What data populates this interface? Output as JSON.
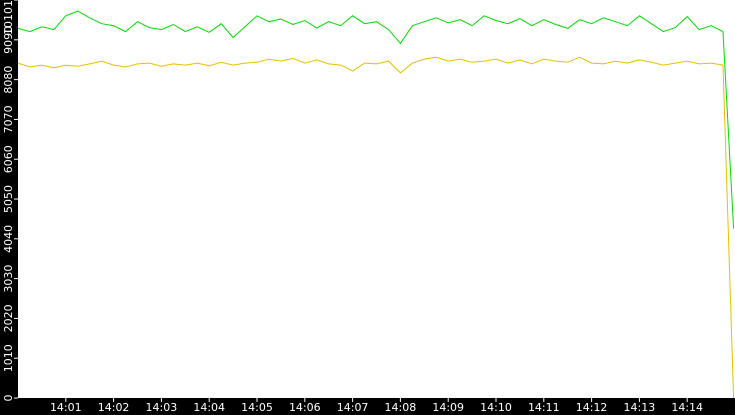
{
  "chart_data": {
    "type": "line",
    "x": [
      0,
      0.25,
      0.5,
      0.75,
      1,
      1.25,
      1.5,
      1.75,
      2,
      2.25,
      2.5,
      2.75,
      3,
      3.25,
      3.5,
      3.75,
      4,
      4.25,
      4.5,
      4.75,
      5,
      5.25,
      5.5,
      5.75,
      6,
      6.25,
      6.5,
      6.75,
      7,
      7.25,
      7.5,
      7.75,
      8,
      8.25,
      8.5,
      8.75,
      9,
      9.25,
      9.5,
      9.75,
      10,
      10.25,
      10.5,
      10.75,
      11,
      11.25,
      11.5,
      11.75,
      12,
      12.25,
      12.5,
      12.75,
      13,
      13.25,
      13.5,
      13.75,
      14,
      14.25,
      14.5,
      14.75,
      14.97
    ],
    "series": [
      {
        "color": "#00dd00",
        "values": [
          9380,
          9300,
          9420,
          9350,
          9700,
          9820,
          9650,
          9500,
          9450,
          9300,
          9550,
          9400,
          9350,
          9480,
          9300,
          9420,
          9280,
          9500,
          9150,
          9420,
          9700,
          9550,
          9620,
          9480,
          9580,
          9390,
          9550,
          9450,
          9700,
          9500,
          9550,
          9350,
          9000,
          9450,
          9550,
          9650,
          9520,
          9600,
          9450,
          9700,
          9580,
          9500,
          9630,
          9450,
          9600,
          9480,
          9380,
          9600,
          9500,
          9650,
          9550,
          9450,
          9700,
          9500,
          9300,
          9400,
          9680,
          9350,
          9450,
          9300,
          4300
        ]
      },
      {
        "color": "#e8c000",
        "values": [
          8500,
          8400,
          8450,
          8380,
          8450,
          8420,
          8480,
          8550,
          8450,
          8400,
          8480,
          8500,
          8420,
          8480,
          8450,
          8500,
          8430,
          8520,
          8450,
          8500,
          8520,
          8600,
          8550,
          8620,
          8500,
          8580,
          8480,
          8450,
          8300,
          8500,
          8480,
          8550,
          8250,
          8500,
          8600,
          8650,
          8550,
          8600,
          8520,
          8550,
          8600,
          8500,
          8580,
          8480,
          8600,
          8550,
          8520,
          8650,
          8500,
          8480,
          8550,
          8500,
          8580,
          8520,
          8450,
          8500,
          8550,
          8480,
          8500,
          8450,
          0
        ]
      }
    ],
    "xlim": [
      0,
      15
    ],
    "xticks": [
      {
        "value": 1,
        "label": "14:01"
      },
      {
        "value": 2,
        "label": "14:02"
      },
      {
        "value": 3,
        "label": "14:03"
      },
      {
        "value": 4,
        "label": "14:04"
      },
      {
        "value": 5,
        "label": "14:05"
      },
      {
        "value": 6,
        "label": "14:06"
      },
      {
        "value": 7,
        "label": "14:07"
      },
      {
        "value": 8,
        "label": "14:08"
      },
      {
        "value": 9,
        "label": "14:09"
      },
      {
        "value": 10,
        "label": "14:10"
      },
      {
        "value": 11,
        "label": "14:11"
      },
      {
        "value": 12,
        "label": "14:12"
      },
      {
        "value": 13,
        "label": "14:13"
      },
      {
        "value": 14,
        "label": "14:14"
      }
    ],
    "ylim": [
      0,
      10101
    ],
    "yticks": [
      0,
      1010,
      2020,
      3030,
      4040,
      5050,
      6060,
      7070,
      8080,
      9090,
      10101
    ],
    "grid": false
  }
}
